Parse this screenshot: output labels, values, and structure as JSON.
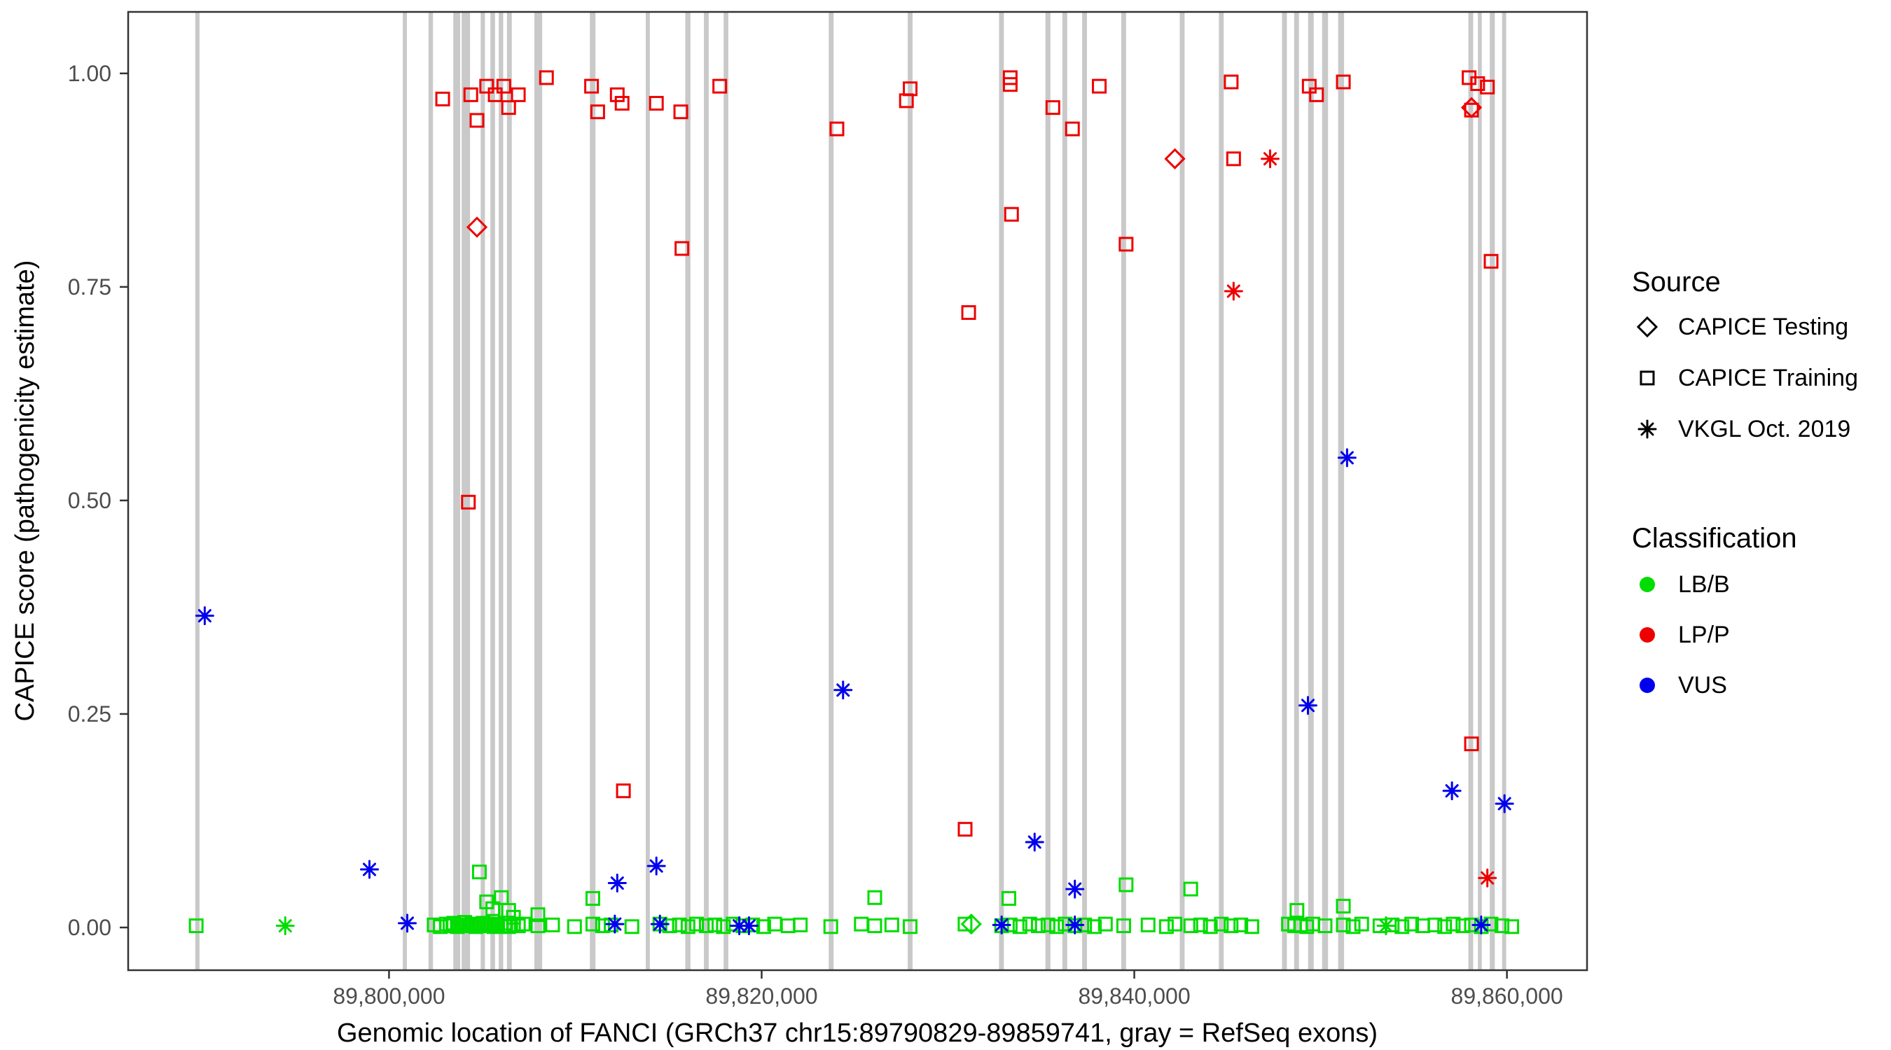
{
  "chart_data": {
    "type": "scatter",
    "title": "",
    "xlabel": "Genomic location of FANCI (GRCh37 chr15:89790829-89859741, gray = RefSeq exons)",
    "ylabel": "CAPICE score (pathogenicity estimate)",
    "xlim": [
      89786000,
      89864300
    ],
    "ylim": [
      -0.05,
      1.072
    ],
    "xticks": [
      {
        "value": 89800000,
        "label": "89,800,000"
      },
      {
        "value": 89820000,
        "label": "89,820,000"
      },
      {
        "value": 89840000,
        "label": "89,840,000"
      },
      {
        "value": 89860000,
        "label": "89,860,000"
      }
    ],
    "yticks": [
      {
        "value": 0.0,
        "label": "0.00"
      },
      {
        "value": 0.25,
        "label": "0.25"
      },
      {
        "value": 0.5,
        "label": "0.50"
      },
      {
        "value": 0.75,
        "label": "0.75"
      },
      {
        "value": 1.0,
        "label": "1.00"
      }
    ],
    "grid": false,
    "exon_color": "#c9c9c9",
    "exons": [
      [
        89789600,
        89789830
      ],
      [
        89800740,
        89800960
      ],
      [
        89802120,
        89802360
      ],
      [
        89803450,
        89803820
      ],
      [
        89803900,
        89804350
      ],
      [
        89804920,
        89805150
      ],
      [
        89805440,
        89805690
      ],
      [
        89805890,
        89806130
      ],
      [
        89806330,
        89806590
      ],
      [
        89807800,
        89808220
      ],
      [
        89810780,
        89811080
      ],
      [
        89813780,
        89814000
      ],
      [
        89815900,
        89816180
      ],
      [
        89816900,
        89817160
      ],
      [
        89817960,
        89818210
      ],
      [
        89823600,
        89823860
      ],
      [
        89827840,
        89828100
      ],
      [
        89832740,
        89833000
      ],
      [
        89835230,
        89835500
      ],
      [
        89836140,
        89836400
      ],
      [
        89837200,
        89837460
      ],
      [
        89839300,
        89839560
      ],
      [
        89842440,
        89842700
      ],
      [
        89844540,
        89844800
      ],
      [
        89847930,
        89848190
      ],
      [
        89848580,
        89848840
      ],
      [
        89849330,
        89849630
      ],
      [
        89850080,
        89850400
      ],
      [
        89850940,
        89851260
      ],
      [
        89857930,
        89858190
      ],
      [
        89858440,
        89858650
      ],
      [
        89859080,
        89859350
      ],
      [
        89859740,
        89859960
      ]
    ],
    "classification_colors": {
      "LB/B": "#00dd00",
      "LP/P": "#ee0000",
      "VUS": "#0000ee"
    },
    "series": [
      {
        "source": "CAPICE Testing",
        "shape": "diamond",
        "classification": "LP/P",
        "points": [
          [
            89804720,
            0.82
          ],
          [
            89842180,
            0.9
          ],
          [
            89858100,
            0.96
          ]
        ]
      },
      {
        "source": "CAPICE Testing",
        "shape": "diamond",
        "classification": "LB/B",
        "points": [
          [
            89831250,
            0.004
          ]
        ]
      },
      {
        "source": "CAPICE Training",
        "shape": "square",
        "classification": "LP/P",
        "points": [
          [
            89802880,
            0.97
          ],
          [
            89804390,
            0.975
          ],
          [
            89804720,
            0.945
          ],
          [
            89805240,
            0.985
          ],
          [
            89805700,
            0.975
          ],
          [
            89806160,
            0.985
          ],
          [
            89806420,
            0.96
          ],
          [
            89806940,
            0.975
          ],
          [
            89808450,
            0.995
          ],
          [
            89810870,
            0.985
          ],
          [
            89811200,
            0.955
          ],
          [
            89812250,
            0.975
          ],
          [
            89812510,
            0.965
          ],
          [
            89814350,
            0.965
          ],
          [
            89815660,
            0.955
          ],
          [
            89817750,
            0.985
          ],
          [
            89824040,
            0.935
          ],
          [
            89827770,
            0.968
          ],
          [
            89827970,
            0.982
          ],
          [
            89833340,
            0.995
          ],
          [
            89833340,
            0.987
          ],
          [
            89835630,
            0.96
          ],
          [
            89836680,
            0.935
          ],
          [
            89838120,
            0.985
          ],
          [
            89845200,
            0.99
          ],
          [
            89849390,
            0.985
          ],
          [
            89849780,
            0.975
          ],
          [
            89851220,
            0.99
          ],
          [
            89857970,
            0.995
          ],
          [
            89858430,
            0.988
          ],
          [
            89858950,
            0.984
          ],
          [
            89858100,
            0.957
          ],
          [
            89804260,
            0.498
          ],
          [
            89815720,
            0.795
          ],
          [
            89812580,
            0.16
          ],
          [
            89831110,
            0.72
          ],
          [
            89830920,
            0.115
          ],
          [
            89833410,
            0.835
          ],
          [
            89839560,
            0.8
          ],
          [
            89845330,
            0.9
          ],
          [
            89858100,
            0.215
          ],
          [
            89859150,
            0.78
          ]
        ]
      },
      {
        "source": "CAPICE Training",
        "shape": "square",
        "classification": "LB/B",
        "points": [
          [
            89804850,
            0.065
          ],
          [
            89805240,
            0.03
          ],
          [
            89805570,
            0.022
          ],
          [
            89806030,
            0.035
          ],
          [
            89806420,
            0.02
          ],
          [
            89806680,
            0.012
          ],
          [
            89807990,
            0.015
          ],
          [
            89810940,
            0.034
          ],
          [
            89826070,
            0.035
          ],
          [
            89833270,
            0.034
          ],
          [
            89839560,
            0.05
          ],
          [
            89843030,
            0.045
          ],
          [
            89848730,
            0.02
          ],
          [
            89851220,
            0.025
          ],
          [
            89789651,
            0.002
          ],
          [
            89802424,
            0.003
          ],
          [
            89802751,
            0.001
          ],
          [
            89803079,
            0.004
          ],
          [
            89803275,
            0.002
          ],
          [
            89803472,
            0.005
          ],
          [
            89803668,
            0.001
          ],
          [
            89803865,
            0.003
          ],
          [
            89804061,
            0.006
          ],
          [
            89804258,
            0.002
          ],
          [
            89804454,
            0.004
          ],
          [
            89804651,
            0.001
          ],
          [
            89804847,
            0.003
          ],
          [
            89805044,
            0.005
          ],
          [
            89805240,
            0.002
          ],
          [
            89805437,
            0.004
          ],
          [
            89805633,
            0.001
          ],
          [
            89805830,
            0.003
          ],
          [
            89806026,
            0.002
          ],
          [
            89806223,
            0.005
          ],
          [
            89806419,
            0.001
          ],
          [
            89806681,
            0.003
          ],
          [
            89806943,
            0.002
          ],
          [
            89807205,
            0.004
          ],
          [
            89807991,
            0.002
          ],
          [
            89808777,
            0.003
          ],
          [
            89809956,
            0.001
          ],
          [
            89810939,
            0.004
          ],
          [
            89811463,
            0.002
          ],
          [
            89811921,
            0.003
          ],
          [
            89813035,
            0.001
          ],
          [
            89814541,
            0.004
          ],
          [
            89815065,
            0.002
          ],
          [
            89815589,
            0.003
          ],
          [
            89816048,
            0.001
          ],
          [
            89816506,
            0.004
          ],
          [
            89817030,
            0.002
          ],
          [
            89817489,
            0.003
          ],
          [
            89817947,
            0.001
          ],
          [
            89818471,
            0.004
          ],
          [
            89818995,
            0.002
          ],
          [
            89819519,
            0.003
          ],
          [
            89820109,
            0.001
          ],
          [
            89820698,
            0.004
          ],
          [
            89821419,
            0.002
          ],
          [
            89822074,
            0.003
          ],
          [
            89823711,
            0.001
          ],
          [
            89825349,
            0.004
          ],
          [
            89826069,
            0.002
          ],
          [
            89826986,
            0.003
          ],
          [
            89827969,
            0.001
          ],
          [
            89830916,
            0.004
          ],
          [
            89832881,
            0.002
          ],
          [
            89833340,
            0.003
          ],
          [
            89833864,
            0.001
          ],
          [
            89834388,
            0.004
          ],
          [
            89834846,
            0.002
          ],
          [
            89835370,
            0.003
          ],
          [
            89835829,
            0.001
          ],
          [
            89836287,
            0.004
          ],
          [
            89836811,
            0.002
          ],
          [
            89837335,
            0.003
          ],
          [
            89837859,
            0.001
          ],
          [
            89838449,
            0.004
          ],
          [
            89839431,
            0.002
          ],
          [
            89840741,
            0.003
          ],
          [
            89841724,
            0.001
          ],
          [
            89842182,
            0.004
          ],
          [
            89843034,
            0.002
          ],
          [
            89843558,
            0.003
          ],
          [
            89844082,
            0.001
          ],
          [
            89844671,
            0.004
          ],
          [
            89845195,
            0.002
          ],
          [
            89845719,
            0.003
          ],
          [
            89846309,
            0.001
          ],
          [
            89848274,
            0.004
          ],
          [
            89848601,
            0.002
          ],
          [
            89848929,
            0.003
          ],
          [
            89849256,
            0.001
          ],
          [
            89849584,
            0.004
          ],
          [
            89850239,
            0.002
          ],
          [
            89851221,
            0.003
          ],
          [
            89851745,
            0.001
          ],
          [
            89852204,
            0.004
          ],
          [
            89853186,
            0.002
          ],
          [
            89853841,
            0.003
          ],
          [
            89854365,
            0.001
          ],
          [
            89854889,
            0.004
          ],
          [
            89855479,
            0.002
          ],
          [
            89856134,
            0.003
          ],
          [
            89856658,
            0.001
          ],
          [
            89857116,
            0.004
          ],
          [
            89857640,
            0.002
          ],
          [
            89858099,
            0.003
          ],
          [
            89858623,
            0.001
          ],
          [
            89859147,
            0.004
          ],
          [
            89859736,
            0.002
          ],
          [
            89860260,
            0.001
          ]
        ]
      },
      {
        "source": "VKGL Oct. 2019",
        "shape": "asterisk",
        "classification": "LP/P",
        "points": [
          [
            89847290,
            0.9
          ],
          [
            89845330,
            0.745
          ],
          [
            89858950,
            0.058
          ]
        ]
      },
      {
        "source": "VKGL Oct. 2019",
        "shape": "asterisk",
        "classification": "VUS",
        "points": [
          [
            89790110,
            0.365
          ],
          [
            89798950,
            0.068
          ],
          [
            89800980,
            0.005
          ],
          [
            89812250,
            0.052
          ],
          [
            89812120,
            0.004
          ],
          [
            89814350,
            0.072
          ],
          [
            89814540,
            0.004
          ],
          [
            89818800,
            0.002
          ],
          [
            89819320,
            0.002
          ],
          [
            89824370,
            0.278
          ],
          [
            89832880,
            0.003
          ],
          [
            89834650,
            0.1
          ],
          [
            89836810,
            0.045
          ],
          [
            89836810,
            0.003
          ],
          [
            89849320,
            0.26
          ],
          [
            89851420,
            0.55
          ],
          [
            89857050,
            0.16
          ],
          [
            89858620,
            0.003
          ],
          [
            89859870,
            0.145
          ]
        ]
      },
      {
        "source": "VKGL Oct. 2019",
        "shape": "asterisk",
        "classification": "LB/B",
        "points": [
          [
            89794430,
            0.002
          ],
          [
            89853510,
            0.002
          ]
        ]
      }
    ],
    "legend": {
      "source_title": "Source",
      "source_items": [
        {
          "label": "CAPICE Testing",
          "shape": "diamond"
        },
        {
          "label": "CAPICE Training",
          "shape": "square"
        },
        {
          "label": "VKGL Oct. 2019",
          "shape": "asterisk"
        }
      ],
      "classification_title": "Classification",
      "classification_items": [
        {
          "label": "LB/B",
          "color": "#00dd00"
        },
        {
          "label": "LP/P",
          "color": "#ee0000"
        },
        {
          "label": "VUS",
          "color": "#0000ee"
        }
      ]
    }
  }
}
